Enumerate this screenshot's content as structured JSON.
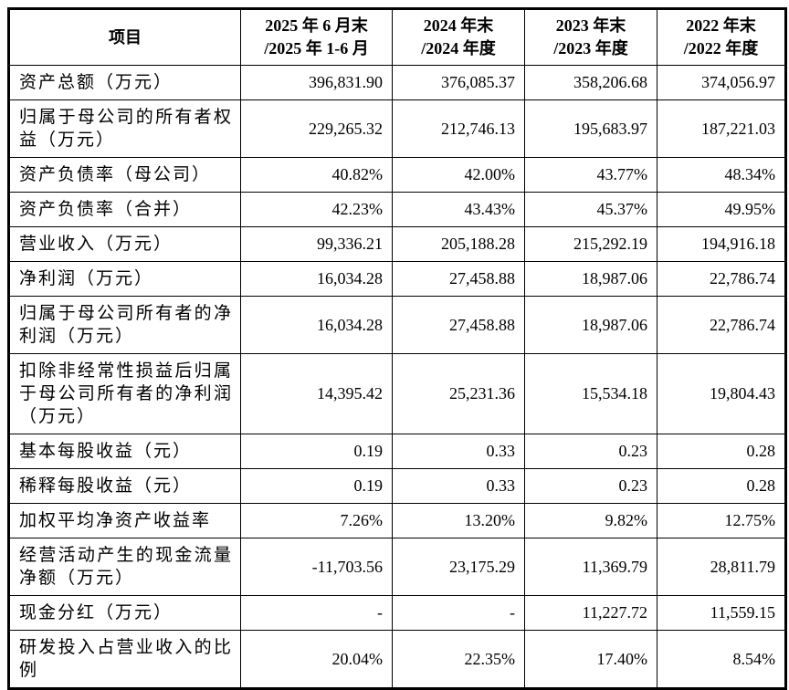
{
  "page": {
    "background": "#ffffff",
    "border_color": "#000000"
  },
  "table": {
    "header": {
      "item_col": "项目",
      "period_cols": [
        {
          "line1": "2025 年 6 月末",
          "line2": "/2025 年 1-6 月"
        },
        {
          "line1": "2024 年末",
          "line2": "/2024 年度"
        },
        {
          "line1": "2023 年末",
          "line2": "/2023 年度"
        },
        {
          "line1": "2022 年末",
          "line2": "/2022 年度"
        }
      ]
    },
    "rows": [
      {
        "label": "资产总额（万元）",
        "values": [
          "396,831.90",
          "376,085.37",
          "358,206.68",
          "374,056.97"
        ]
      },
      {
        "label": "归属于母公司的所有者权益（万元）",
        "values": [
          "229,265.32",
          "212,746.13",
          "195,683.97",
          "187,221.03"
        ]
      },
      {
        "label": "资产负债率（母公司）",
        "values": [
          "40.82%",
          "42.00%",
          "43.77%",
          "48.34%"
        ]
      },
      {
        "label": "资产负债率（合并）",
        "values": [
          "42.23%",
          "43.43%",
          "45.37%",
          "49.95%"
        ]
      },
      {
        "label": "营业收入（万元）",
        "values": [
          "99,336.21",
          "205,188.28",
          "215,292.19",
          "194,916.18"
        ]
      },
      {
        "label": "净利润（万元）",
        "values": [
          "16,034.28",
          "27,458.88",
          "18,987.06",
          "22,786.74"
        ]
      },
      {
        "label": "归属于母公司所有者的净利润（万元）",
        "values": [
          "16,034.28",
          "27,458.88",
          "18,987.06",
          "22,786.74"
        ]
      },
      {
        "label": "扣除非经常性损益后归属于母公司所有者的净利润（万元）",
        "values": [
          "14,395.42",
          "25,231.36",
          "15,534.18",
          "19,804.43"
        ]
      },
      {
        "label": "基本每股收益（元）",
        "values": [
          "0.19",
          "0.33",
          "0.23",
          "0.28"
        ]
      },
      {
        "label": "稀释每股收益（元）",
        "values": [
          "0.19",
          "0.33",
          "0.23",
          "0.28"
        ]
      },
      {
        "label": "加权平均净资产收益率",
        "values": [
          "7.26%",
          "13.20%",
          "9.82%",
          "12.75%"
        ]
      },
      {
        "label": "经营活动产生的现金流量净额（万元）",
        "values": [
          "-11,703.56",
          "23,175.29",
          "11,369.79",
          "28,811.79"
        ]
      },
      {
        "label": "现金分红（万元）",
        "values": [
          "-",
          "-",
          "11,227.72",
          "11,559.15"
        ]
      },
      {
        "label": "研发投入占营业收入的比例",
        "values": [
          "20.04%",
          "22.35%",
          "17.40%",
          "8.54%"
        ]
      }
    ]
  }
}
